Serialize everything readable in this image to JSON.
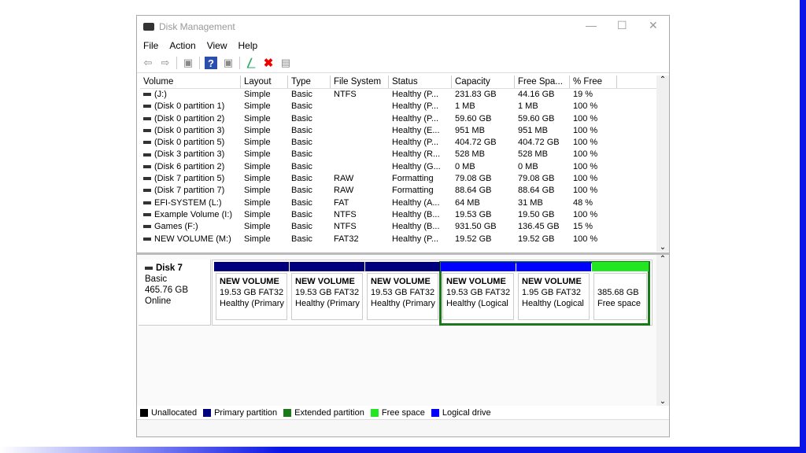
{
  "window": {
    "title": "Disk Management"
  },
  "menu": [
    "File",
    "Action",
    "View",
    "Help"
  ],
  "toolbar": [
    {
      "icon": "back-arrow-icon"
    },
    {
      "icon": "forward-arrow-icon"
    },
    {
      "icon": "show-hide-console-tree-icon"
    },
    {
      "icon": "help-icon"
    },
    {
      "icon": "show-hide-action-pane-icon"
    },
    {
      "icon": "connect-icon"
    },
    {
      "icon": "delete-icon"
    },
    {
      "icon": "properties-icon"
    }
  ],
  "columns": [
    "Volume",
    "Layout",
    "Type",
    "File System",
    "Status",
    "Capacity",
    "Free Spa...",
    "% Free"
  ],
  "volumes": [
    [
      "(J:)",
      "Simple",
      "Basic",
      "NTFS",
      "Healthy (P...",
      "231.83 GB",
      "44.16 GB",
      "19 %"
    ],
    [
      "(Disk 0 partition 1)",
      "Simple",
      "Basic",
      "",
      "Healthy (P...",
      "1 MB",
      "1 MB",
      "100 %"
    ],
    [
      "(Disk 0 partition 2)",
      "Simple",
      "Basic",
      "",
      "Healthy (P...",
      "59.60 GB",
      "59.60 GB",
      "100 %"
    ],
    [
      "(Disk 0 partition 3)",
      "Simple",
      "Basic",
      "",
      "Healthy (E...",
      "951 MB",
      "951 MB",
      "100 %"
    ],
    [
      "(Disk 0 partition 5)",
      "Simple",
      "Basic",
      "",
      "Healthy (P...",
      "404.72 GB",
      "404.72 GB",
      "100 %"
    ],
    [
      "(Disk 3 partition 3)",
      "Simple",
      "Basic",
      "",
      "Healthy (R...",
      "528 MB",
      "528 MB",
      "100 %"
    ],
    [
      "(Disk 6 partition 2)",
      "Simple",
      "Basic",
      "",
      "Healthy (G...",
      "0 MB",
      "0 MB",
      "100 %"
    ],
    [
      "(Disk 7 partition 5)",
      "Simple",
      "Basic",
      "RAW",
      "Formatting",
      "79.08 GB",
      "79.08 GB",
      "100 %"
    ],
    [
      "(Disk 7 partition 7)",
      "Simple",
      "Basic",
      "RAW",
      "Formatting",
      "88.64 GB",
      "88.64 GB",
      "100 %"
    ],
    [
      "EFI-SYSTEM (L:)",
      "Simple",
      "Basic",
      "FAT",
      "Healthy (A...",
      "64 MB",
      "31 MB",
      "48 %"
    ],
    [
      "Example Volume (I:)",
      "Simple",
      "Basic",
      "NTFS",
      "Healthy (B...",
      "19.53 GB",
      "19.50 GB",
      "100 %"
    ],
    [
      "Games (F:)",
      "Simple",
      "Basic",
      "NTFS",
      "Healthy (B...",
      "931.50 GB",
      "136.45 GB",
      "15 %"
    ],
    [
      "NEW VOLUME (M:)",
      "Simple",
      "Basic",
      "FAT32",
      "Healthy (P...",
      "19.52 GB",
      "19.52 GB",
      "100 %"
    ]
  ],
  "disk": {
    "name": "Disk 7",
    "type": "Basic",
    "size": "465.76 GB",
    "state": "Online",
    "partitions": [
      {
        "name": "NEW VOLUME",
        "info": "19.53 GB FAT32",
        "status": "Healthy (Primary",
        "color": "#00007f"
      },
      {
        "name": "NEW VOLUME",
        "info": "19.53 GB FAT32",
        "status": "Healthy (Primary",
        "color": "#00007f"
      },
      {
        "name": "NEW VOLUME",
        "info": "19.53 GB FAT32",
        "status": "Healthy (Primary",
        "color": "#00007f"
      },
      {
        "name": "NEW VOLUME",
        "info": "19.53 GB FAT32",
        "status": "Healthy (Logical",
        "color": "#0000ff"
      },
      {
        "name": "NEW VOLUME",
        "info": "1.95 GB FAT32",
        "status": "Healthy (Logical",
        "color": "#0000ff"
      },
      {
        "name": "",
        "info": "385.68 GB",
        "status": "Free space",
        "color": "#22e622"
      }
    ]
  },
  "legend": [
    {
      "label": "Unallocated",
      "color": "#000000"
    },
    {
      "label": "Primary partition",
      "color": "#00007f"
    },
    {
      "label": "Extended partition",
      "color": "#1a7a1a"
    },
    {
      "label": "Free space",
      "color": "#22e622"
    },
    {
      "label": "Logical drive",
      "color": "#0000ff"
    }
  ]
}
